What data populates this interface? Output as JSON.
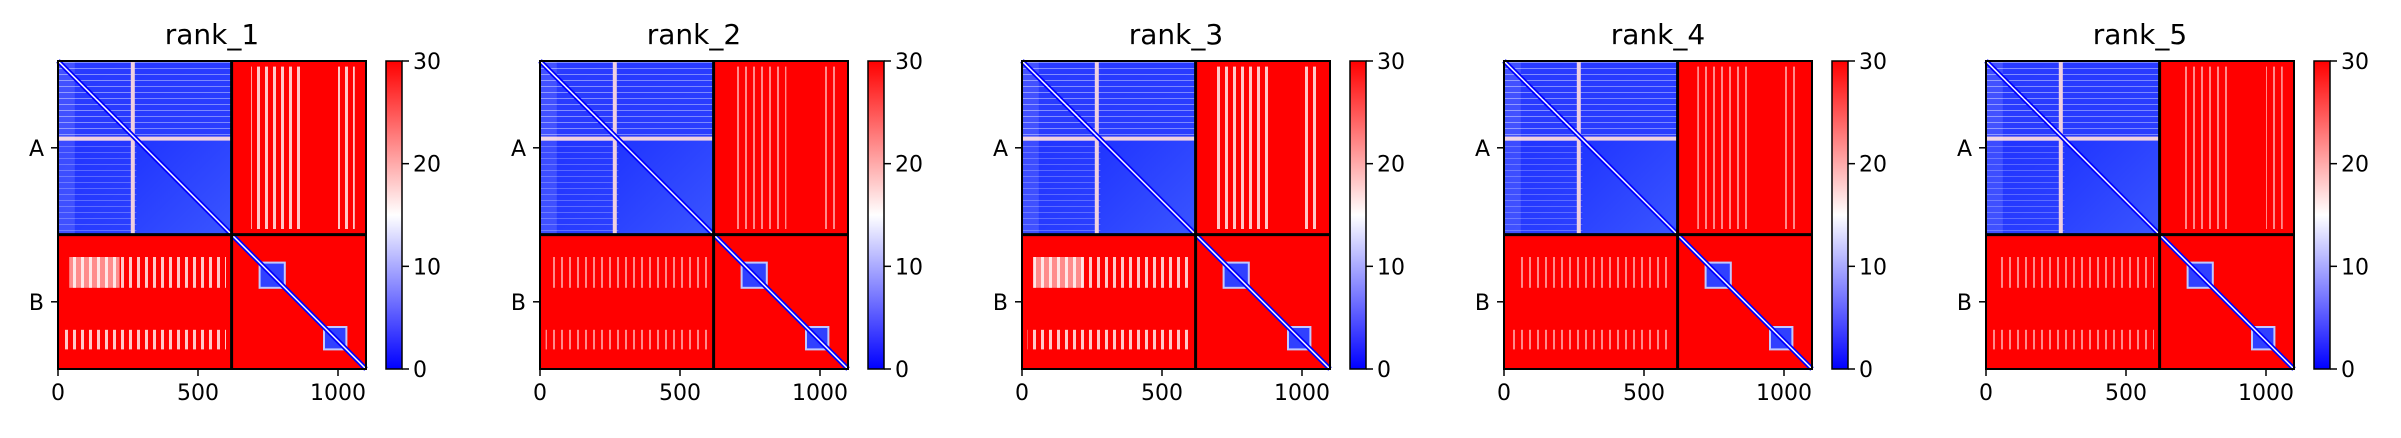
{
  "chart_data": [
    {
      "type": "heatmap",
      "title": "rank_1",
      "chains": [
        "A",
        "B"
      ],
      "chain_boundary": 620,
      "x_ticks": [
        0,
        500,
        1000
      ],
      "xlim": [
        0,
        1100
      ],
      "colorbar": {
        "ticks": [
          0,
          10,
          20,
          30
        ],
        "range": [
          0,
          30
        ],
        "low_color": "#0000ff",
        "mid_color": "#ffffff",
        "high_color": "#ff0000"
      },
      "patterns": {
        "aa_pattern": "blue",
        "ab_stripes": "light",
        "diag_blocks": [
          [
            720,
            810
          ],
          [
            950,
            1030
          ]
        ]
      }
    },
    {
      "type": "heatmap",
      "title": "rank_2",
      "chains": [
        "A",
        "B"
      ],
      "chain_boundary": 620,
      "x_ticks": [
        0,
        500,
        1000
      ],
      "xlim": [
        0,
        1100
      ],
      "colorbar": {
        "ticks": [
          0,
          10,
          20,
          30
        ],
        "range": [
          0,
          30
        ],
        "low_color": "#0000ff",
        "mid_color": "#ffffff",
        "high_color": "#ff0000"
      },
      "patterns": {
        "aa_pattern": "blue",
        "ab_stripes": "faint",
        "diag_blocks": [
          [
            720,
            810
          ],
          [
            950,
            1030
          ]
        ]
      }
    },
    {
      "type": "heatmap",
      "title": "rank_3",
      "chains": [
        "A",
        "B"
      ],
      "chain_boundary": 620,
      "x_ticks": [
        0,
        500,
        1000
      ],
      "xlim": [
        0,
        1100
      ],
      "colorbar": {
        "ticks": [
          0,
          10,
          20,
          30
        ],
        "range": [
          0,
          30
        ],
        "low_color": "#0000ff",
        "mid_color": "#ffffff",
        "high_color": "#ff0000"
      },
      "patterns": {
        "aa_pattern": "blue",
        "ab_stripes": "light",
        "diag_blocks": [
          [
            720,
            810
          ],
          [
            950,
            1030
          ]
        ]
      }
    },
    {
      "type": "heatmap",
      "title": "rank_4",
      "chains": [
        "A",
        "B"
      ],
      "chain_boundary": 620,
      "x_ticks": [
        0,
        500,
        1000
      ],
      "xlim": [
        0,
        1100
      ],
      "colorbar": {
        "ticks": [
          0,
          10,
          20,
          30
        ],
        "range": [
          0,
          30
        ],
        "low_color": "#0000ff",
        "mid_color": "#ffffff",
        "high_color": "#ff0000"
      },
      "patterns": {
        "aa_pattern": "blue",
        "ab_stripes": "faint",
        "diag_blocks": [
          [
            720,
            810
          ],
          [
            950,
            1030
          ]
        ]
      }
    },
    {
      "type": "heatmap",
      "title": "rank_5",
      "chains": [
        "A",
        "B"
      ],
      "chain_boundary": 620,
      "x_ticks": [
        0,
        500,
        1000
      ],
      "xlim": [
        0,
        1100
      ],
      "colorbar": {
        "ticks": [
          0,
          10,
          20,
          30
        ],
        "range": [
          0,
          30
        ],
        "low_color": "#0000ff",
        "mid_color": "#ffffff",
        "high_color": "#ff0000"
      },
      "patterns": {
        "aa_pattern": "blue",
        "ab_stripes": "faint",
        "diag_blocks": [
          [
            720,
            810
          ],
          [
            950,
            1030
          ]
        ]
      }
    }
  ]
}
